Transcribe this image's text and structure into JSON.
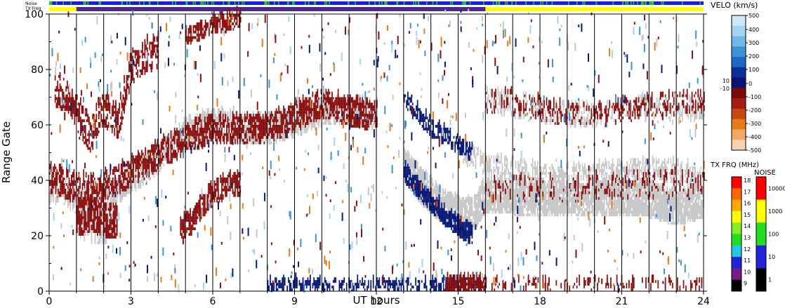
{
  "chart_data": {
    "type": "heatmap",
    "subtype": "radar range-time plot",
    "xlabel": "UT hours",
    "ylabel": "Range Gate",
    "x_range": [
      0,
      24
    ],
    "y_range": [
      0,
      100
    ],
    "x_ticks": [
      "0",
      "3",
      "6",
      "9",
      "12",
      "15",
      "18",
      "21",
      "24"
    ],
    "x_tick_values": [
      0,
      3,
      6,
      9,
      12,
      15,
      18,
      21,
      24
    ],
    "y_ticks": [
      "0",
      "20",
      "40",
      "60",
      "80",
      "100"
    ],
    "y_tick_values": [
      0,
      20,
      40,
      60,
      80,
      100
    ],
    "hour_lines": [
      1,
      2,
      3,
      4,
      5,
      6,
      7,
      8,
      9,
      10,
      11,
      12,
      13,
      14,
      15,
      16,
      17,
      18,
      19,
      20,
      21,
      22,
      23
    ],
    "header_strips": {
      "noise_label": "Noise",
      "txfreq_label": "TX Freq",
      "blue_color": "#1a1aee",
      "green_color": "#22cc22",
      "yellow_color": "#ffff00",
      "purple_color": "#4b2a8a",
      "purple_span": [
        1.0,
        16.0
      ]
    },
    "velocity_colorbar": {
      "title": "VELO (km/s)",
      "ticks": [
        "500",
        "400",
        "300",
        "200",
        "100",
        "10",
        "0",
        "-10",
        "-100",
        "-200",
        "-300",
        "-400",
        "-500"
      ],
      "colors": [
        "#cfe8f7",
        "#a5d4f2",
        "#6fb8e8",
        "#3a94d8",
        "#1e66c8",
        "#0c2f9e",
        "#0a1470",
        "#7a0a0a",
        "#a01e14",
        "#c8460f",
        "#e87a1a",
        "#f4a862",
        "#f6d2b4"
      ]
    },
    "txfreq_colorbar": {
      "title": "TX FRQ (MHz)",
      "ticks": [
        "9",
        "10",
        "11",
        "12",
        "13",
        "14",
        "15",
        "16",
        "17",
        "18"
      ],
      "colors": [
        "#000000",
        "#7a1a8a",
        "#2222dd",
        "#22c8e8",
        "#22dd22",
        "#88ee22",
        "#ffff00",
        "#ffaa00",
        "#ff6600",
        "#ff0000"
      ]
    },
    "noise_colorbar": {
      "title": "NOISE",
      "ticks": [
        "1",
        "10",
        "100",
        "1000",
        "10000"
      ],
      "colors": [
        "#000000",
        "#2222dd",
        "#22dd22",
        "#ffff00",
        "#ff0000"
      ]
    },
    "features": [
      {
        "kind": "ground_scatter",
        "color": "#c8c8c8",
        "points": [
          [
            0,
            35
          ],
          [
            0.5,
            36
          ],
          [
            1,
            32
          ],
          [
            1.5,
            31
          ],
          [
            2,
            33
          ],
          [
            2.5,
            36
          ],
          [
            3,
            40
          ],
          [
            3.5,
            43
          ],
          [
            4,
            47
          ],
          [
            4.5,
            52
          ],
          [
            5,
            56
          ],
          [
            5.5,
            58
          ],
          [
            6,
            60
          ],
          [
            7,
            58
          ],
          [
            8,
            57
          ],
          [
            9,
            60
          ],
          [
            10,
            64
          ],
          [
            11,
            64
          ],
          [
            12,
            62
          ]
        ],
        "halfwidth": 4,
        "density": 0.55
      },
      {
        "kind": "ground_scatter",
        "color": "#c8c8c8",
        "points": [
          [
            15,
            50
          ],
          [
            15.5,
            48
          ],
          [
            16,
            45
          ],
          [
            17,
            43
          ],
          [
            18,
            41
          ],
          [
            19,
            40
          ],
          [
            20,
            41
          ],
          [
            21,
            42
          ],
          [
            22,
            43
          ],
          [
            23,
            42
          ],
          [
            24,
            40
          ]
        ],
        "halfwidth": 3,
        "density": 0.35
      },
      {
        "kind": "ground_scatter",
        "color": "#c8c8c8",
        "points": [
          [
            13,
            45
          ],
          [
            13.5,
            38
          ],
          [
            14,
            33
          ],
          [
            14.5,
            29
          ],
          [
            15,
            27
          ],
          [
            15.5,
            26
          ],
          [
            16,
            34
          ],
          [
            17,
            33
          ],
          [
            18,
            32
          ],
          [
            19,
            32
          ],
          [
            20,
            32
          ],
          [
            21,
            33
          ],
          [
            22,
            32
          ],
          [
            23,
            29
          ],
          [
            24,
            32
          ]
        ],
        "halfwidth": 5,
        "density": 0.75
      },
      {
        "kind": "ground_scatter",
        "color": "#c8c8c8",
        "points": [
          [
            16,
            68
          ],
          [
            17,
            66
          ],
          [
            18,
            64
          ],
          [
            19,
            63
          ],
          [
            20,
            62
          ],
          [
            21,
            63
          ],
          [
            22,
            66
          ],
          [
            23,
            63
          ],
          [
            24,
            66
          ]
        ],
        "halfwidth": 3,
        "density": 0.25
      },
      {
        "kind": "ground_scatter",
        "color": "#c8c8c8",
        "points": [
          [
            1,
            25
          ],
          [
            1.5,
            23
          ],
          [
            2,
            22
          ],
          [
            2.5,
            27
          ]
        ],
        "halfwidth": 5,
        "density": 0.45
      },
      {
        "kind": "negative_velocity",
        "color": "#8b1010",
        "points": [
          [
            0,
            40
          ],
          [
            0.5,
            38
          ],
          [
            1,
            36
          ],
          [
            2,
            37
          ],
          [
            3,
            42
          ],
          [
            4,
            48
          ],
          [
            5,
            54
          ],
          [
            6,
            58
          ],
          [
            7,
            57
          ],
          [
            8,
            58
          ],
          [
            9,
            62
          ],
          [
            10,
            67
          ],
          [
            11,
            64
          ],
          [
            12,
            62
          ]
        ],
        "halfwidth": 4,
        "density": 0.45
      },
      {
        "kind": "negative_velocity",
        "color": "#8b1010",
        "points": [
          [
            1,
            25
          ],
          [
            1.5,
            27
          ],
          [
            2,
            25
          ],
          [
            2.5,
            24
          ]
        ],
        "halfwidth": 5,
        "density": 0.55
      },
      {
        "kind": "negative_velocity",
        "color": "#8b1010",
        "points": [
          [
            0.2,
            72
          ],
          [
            0.6,
            70
          ],
          [
            1.5,
            55
          ],
          [
            2,
            65
          ],
          [
            2.5,
            60
          ],
          [
            3,
            80
          ],
          [
            3.5,
            84
          ],
          [
            4,
            86
          ]
        ],
        "halfwidth": 5,
        "density": 0.35
      },
      {
        "kind": "negative_velocity",
        "color": "#8b1010",
        "points": [
          [
            4.8,
            22
          ],
          [
            5.2,
            24
          ],
          [
            5.6,
            30
          ],
          [
            6,
            34
          ],
          [
            6.5,
            37
          ],
          [
            7,
            38
          ]
        ],
        "halfwidth": 3,
        "density": 0.5
      },
      {
        "kind": "negative_velocity",
        "color": "#8b1010",
        "points": [
          [
            5,
            91
          ],
          [
            5.5,
            93
          ],
          [
            6,
            95
          ],
          [
            6.5,
            96
          ],
          [
            7,
            98
          ]
        ],
        "halfwidth": 2,
        "density": 0.5
      },
      {
        "kind": "negative_velocity",
        "color": "#8b1010",
        "points": [
          [
            16,
            68
          ],
          [
            17,
            67
          ],
          [
            18,
            65
          ],
          [
            19,
            63
          ],
          [
            20,
            63
          ],
          [
            21,
            64
          ],
          [
            22,
            67
          ],
          [
            23,
            66
          ],
          [
            24,
            68
          ]
        ],
        "halfwidth": 3,
        "density": 0.2
      },
      {
        "kind": "negative_velocity",
        "color": "#8b1010",
        "points": [
          [
            16,
            36
          ],
          [
            18,
            36
          ],
          [
            20,
            36
          ],
          [
            22,
            38
          ],
          [
            24,
            37
          ]
        ],
        "halfwidth": 4,
        "density": 0.12
      },
      {
        "kind": "positive_velocity",
        "color": "#0a1a7a",
        "points": [
          [
            13,
            42
          ],
          [
            13.5,
            36
          ],
          [
            14,
            31
          ],
          [
            14.5,
            26
          ],
          [
            15,
            22
          ],
          [
            15.5,
            19
          ]
        ],
        "halfwidth": 2,
        "density": 0.8
      },
      {
        "kind": "positive_velocity",
        "color": "#0a1a7a",
        "points": [
          [
            13,
            68
          ],
          [
            13.5,
            63
          ],
          [
            14,
            58
          ],
          [
            14.5,
            55
          ],
          [
            15,
            52
          ],
          [
            15.5,
            49
          ]
        ],
        "halfwidth": 2,
        "density": 0.4
      },
      {
        "kind": "positive_velocity",
        "color": "#0a1a7a",
        "points": [
          [
            8,
            1
          ],
          [
            10,
            1
          ],
          [
            12,
            1
          ],
          [
            13,
            1
          ],
          [
            14,
            1
          ],
          [
            15,
            1
          ],
          [
            16,
            1
          ]
        ],
        "halfwidth": 2,
        "density": 0.35
      },
      {
        "kind": "negative_velocity",
        "color": "#8b1010",
        "points": [
          [
            14.5,
            2
          ],
          [
            15,
            2
          ],
          [
            15.5,
            2
          ],
          [
            16,
            2
          ]
        ],
        "halfwidth": 2,
        "density": 0.7
      },
      {
        "kind": "negative_velocity",
        "color": "#8b1010",
        "points": [
          [
            16,
            1
          ],
          [
            18,
            1
          ],
          [
            20,
            1
          ],
          [
            22,
            1
          ],
          [
            24,
            1
          ]
        ],
        "halfwidth": 2,
        "density": 0.18
      }
    ]
  }
}
